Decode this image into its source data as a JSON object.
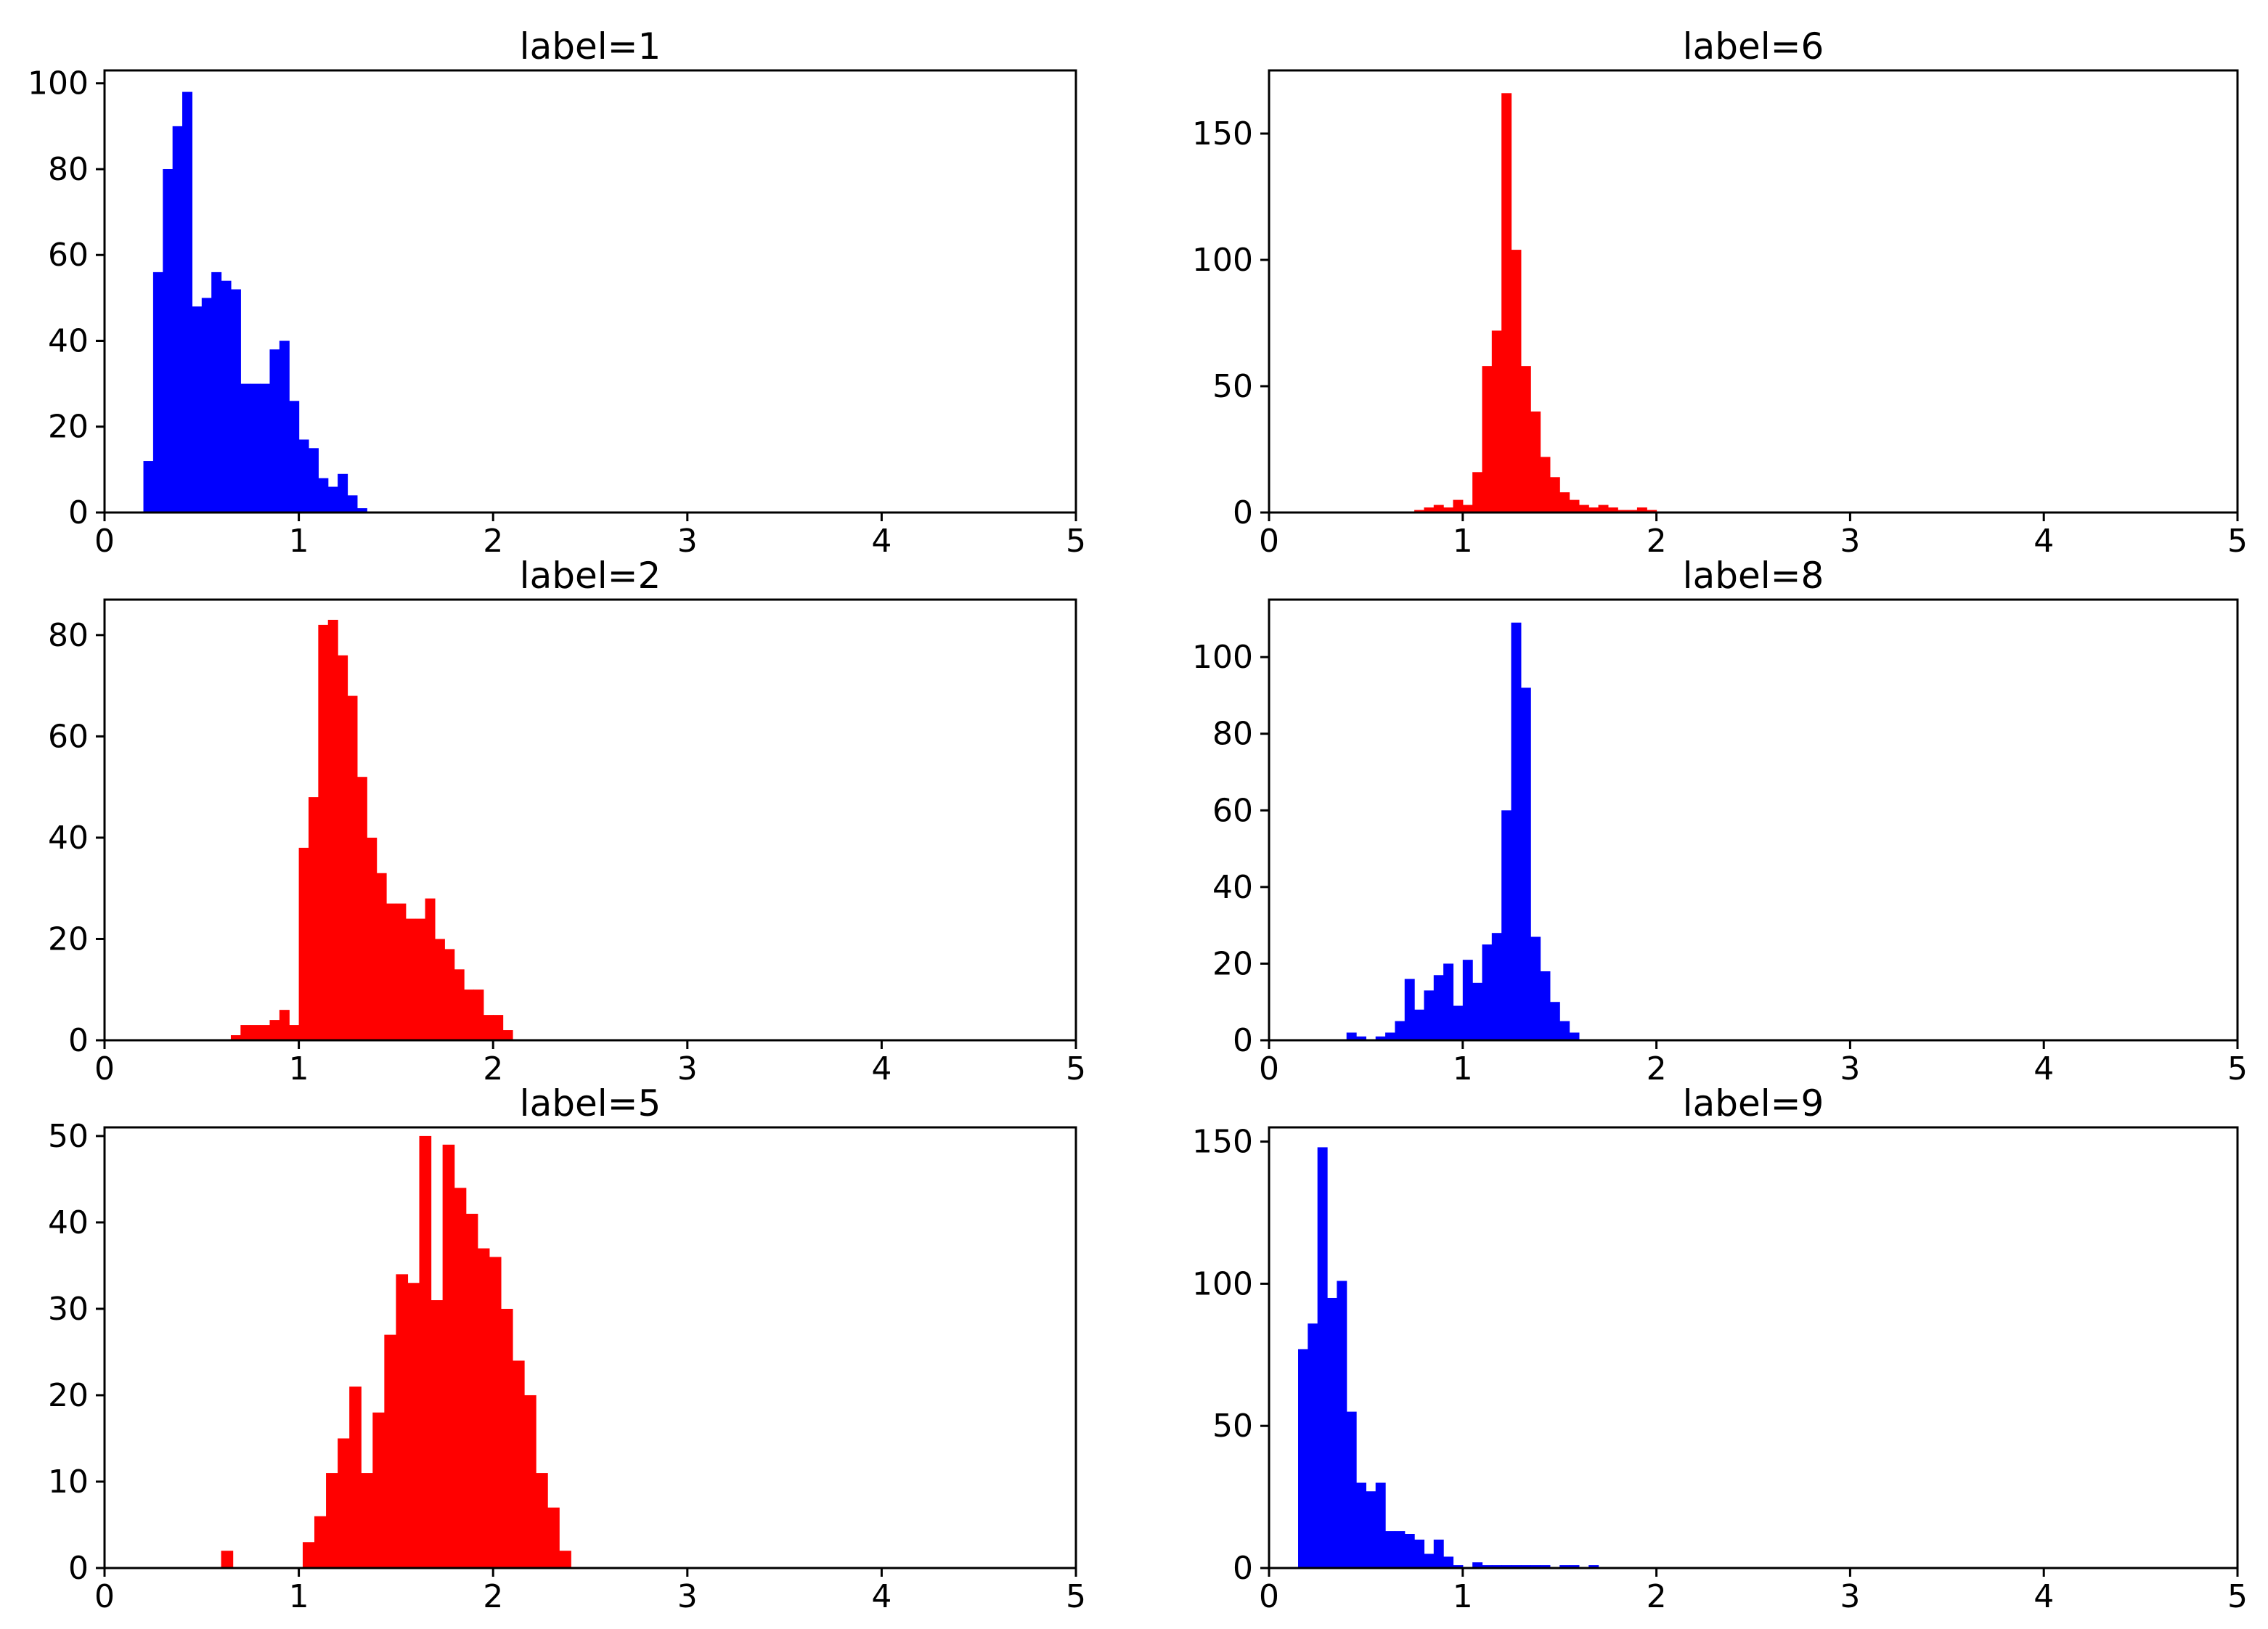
{
  "chart_data": [
    {
      "type": "bar",
      "title": "label=1",
      "xlabel": "",
      "ylabel": "",
      "xlim": [
        0,
        5
      ],
      "ylim": [
        0,
        103
      ],
      "xticks": [
        0,
        1,
        2,
        3,
        4,
        5
      ],
      "yticks": [
        0,
        20,
        40,
        60,
        80,
        100
      ],
      "bin_width": 0.05,
      "color": "#0000ff",
      "bins": [
        [
          0.2,
          12
        ],
        [
          0.25,
          56
        ],
        [
          0.3,
          80
        ],
        [
          0.35,
          90
        ],
        [
          0.4,
          98
        ],
        [
          0.45,
          48
        ],
        [
          0.5,
          50
        ],
        [
          0.55,
          56
        ],
        [
          0.6,
          54
        ],
        [
          0.65,
          52
        ],
        [
          0.7,
          30
        ],
        [
          0.75,
          30
        ],
        [
          0.8,
          30
        ],
        [
          0.85,
          38
        ],
        [
          0.9,
          40
        ],
        [
          0.95,
          26
        ],
        [
          1.0,
          17
        ],
        [
          1.05,
          15
        ],
        [
          1.1,
          8
        ],
        [
          1.15,
          6
        ],
        [
          1.2,
          9
        ],
        [
          1.25,
          4
        ],
        [
          1.3,
          1
        ]
      ]
    },
    {
      "type": "bar",
      "title": "label=6",
      "xlabel": "",
      "ylabel": "",
      "xlim": [
        0,
        5
      ],
      "ylim": [
        0,
        175
      ],
      "xticks": [
        0,
        1,
        2,
        3,
        4,
        5
      ],
      "yticks": [
        0,
        50,
        100,
        150
      ],
      "bin_width": 0.05,
      "color": "#ff0000",
      "bins": [
        [
          0.75,
          1
        ],
        [
          0.8,
          2
        ],
        [
          0.85,
          3
        ],
        [
          0.9,
          2
        ],
        [
          0.95,
          5
        ],
        [
          1.0,
          3
        ],
        [
          1.05,
          16
        ],
        [
          1.1,
          58
        ],
        [
          1.15,
          72
        ],
        [
          1.2,
          166
        ],
        [
          1.25,
          104
        ],
        [
          1.3,
          58
        ],
        [
          1.35,
          40
        ],
        [
          1.4,
          22
        ],
        [
          1.45,
          14
        ],
        [
          1.5,
          8
        ],
        [
          1.55,
          5
        ],
        [
          1.6,
          3
        ],
        [
          1.65,
          2
        ],
        [
          1.7,
          3
        ],
        [
          1.75,
          2
        ],
        [
          1.8,
          1
        ],
        [
          1.85,
          1
        ],
        [
          1.9,
          2
        ],
        [
          1.95,
          1
        ]
      ]
    },
    {
      "type": "bar",
      "title": "label=2",
      "xlabel": "",
      "ylabel": "",
      "xlim": [
        0,
        5
      ],
      "ylim": [
        0,
        87
      ],
      "xticks": [
        0,
        1,
        2,
        3,
        4,
        5
      ],
      "yticks": [
        0,
        20,
        40,
        60,
        80
      ],
      "bin_width": 0.05,
      "color": "#ff0000",
      "bins": [
        [
          0.65,
          1
        ],
        [
          0.7,
          3
        ],
        [
          0.75,
          3
        ],
        [
          0.8,
          3
        ],
        [
          0.85,
          4
        ],
        [
          0.9,
          6
        ],
        [
          0.95,
          3
        ],
        [
          1.0,
          38
        ],
        [
          1.05,
          48
        ],
        [
          1.1,
          82
        ],
        [
          1.15,
          83
        ],
        [
          1.2,
          76
        ],
        [
          1.25,
          68
        ],
        [
          1.3,
          52
        ],
        [
          1.35,
          40
        ],
        [
          1.4,
          33
        ],
        [
          1.45,
          27
        ],
        [
          1.5,
          27
        ],
        [
          1.55,
          24
        ],
        [
          1.6,
          24
        ],
        [
          1.65,
          28
        ],
        [
          1.7,
          20
        ],
        [
          1.75,
          18
        ],
        [
          1.8,
          14
        ],
        [
          1.85,
          10
        ],
        [
          1.9,
          10
        ],
        [
          1.95,
          5
        ],
        [
          2.0,
          5
        ],
        [
          2.05,
          2
        ]
      ]
    },
    {
      "type": "bar",
      "title": "label=8",
      "xlabel": "",
      "ylabel": "",
      "xlim": [
        0,
        5
      ],
      "ylim": [
        0,
        115
      ],
      "xticks": [
        0,
        1,
        2,
        3,
        4,
        5
      ],
      "yticks": [
        0,
        20,
        40,
        60,
        80,
        100
      ],
      "bin_width": 0.05,
      "color": "#0000ff",
      "bins": [
        [
          0.4,
          2
        ],
        [
          0.45,
          1
        ],
        [
          0.55,
          1
        ],
        [
          0.6,
          2
        ],
        [
          0.65,
          5
        ],
        [
          0.7,
          16
        ],
        [
          0.75,
          8
        ],
        [
          0.8,
          13
        ],
        [
          0.85,
          17
        ],
        [
          0.9,
          20
        ],
        [
          0.95,
          9
        ],
        [
          1.0,
          21
        ],
        [
          1.05,
          15
        ],
        [
          1.1,
          25
        ],
        [
          1.15,
          28
        ],
        [
          1.2,
          60
        ],
        [
          1.25,
          109
        ],
        [
          1.3,
          92
        ],
        [
          1.35,
          27
        ],
        [
          1.4,
          18
        ],
        [
          1.45,
          10
        ],
        [
          1.5,
          5
        ],
        [
          1.55,
          2
        ]
      ]
    },
    {
      "type": "bar",
      "title": "label=5",
      "xlabel": "",
      "ylabel": "",
      "xlim": [
        0,
        5
      ],
      "ylim": [
        0,
        51
      ],
      "xticks": [
        0,
        1,
        2,
        3,
        4,
        5
      ],
      "yticks": [
        0,
        10,
        20,
        30,
        40,
        50
      ],
      "bin_width": 0.06,
      "color": "#ff0000",
      "bins": [
        [
          0.6,
          2
        ],
        [
          1.02,
          3
        ],
        [
          1.08,
          6
        ],
        [
          1.14,
          11
        ],
        [
          1.2,
          15
        ],
        [
          1.26,
          21
        ],
        [
          1.32,
          11
        ],
        [
          1.38,
          18
        ],
        [
          1.44,
          27
        ],
        [
          1.5,
          34
        ],
        [
          1.56,
          33
        ],
        [
          1.62,
          50
        ],
        [
          1.68,
          31
        ],
        [
          1.74,
          49
        ],
        [
          1.8,
          44
        ],
        [
          1.86,
          41
        ],
        [
          1.92,
          37
        ],
        [
          1.98,
          36
        ],
        [
          2.04,
          30
        ],
        [
          2.1,
          24
        ],
        [
          2.16,
          20
        ],
        [
          2.22,
          11
        ],
        [
          2.28,
          7
        ],
        [
          2.34,
          2
        ]
      ]
    },
    {
      "type": "bar",
      "title": "label=9",
      "xlabel": "",
      "ylabel": "",
      "xlim": [
        0,
        5
      ],
      "ylim": [
        0,
        155
      ],
      "xticks": [
        0,
        1,
        2,
        3,
        4,
        5
      ],
      "yticks": [
        0,
        50,
        100,
        150
      ],
      "bin_width": 0.05,
      "color": "#0000ff",
      "bins": [
        [
          0.15,
          77
        ],
        [
          0.2,
          86
        ],
        [
          0.25,
          148
        ],
        [
          0.3,
          95
        ],
        [
          0.35,
          101
        ],
        [
          0.4,
          55
        ],
        [
          0.45,
          30
        ],
        [
          0.5,
          27
        ],
        [
          0.55,
          30
        ],
        [
          0.6,
          13
        ],
        [
          0.65,
          13
        ],
        [
          0.7,
          12
        ],
        [
          0.75,
          10
        ],
        [
          0.8,
          5
        ],
        [
          0.85,
          10
        ],
        [
          0.9,
          4
        ],
        [
          0.95,
          1
        ],
        [
          1.05,
          2
        ],
        [
          1.1,
          1
        ],
        [
          1.15,
          1
        ],
        [
          1.2,
          1
        ],
        [
          1.25,
          1
        ],
        [
          1.3,
          1
        ],
        [
          1.35,
          1
        ],
        [
          1.4,
          1
        ],
        [
          1.5,
          1
        ],
        [
          1.55,
          1
        ],
        [
          1.65,
          1
        ]
      ]
    }
  ]
}
